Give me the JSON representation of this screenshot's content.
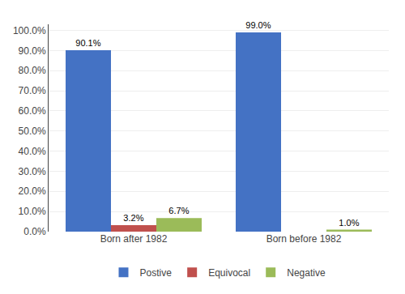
{
  "chart_data": {
    "type": "bar",
    "categories": [
      "Born after 1982",
      "Born before 1982"
    ],
    "series": [
      {
        "name": "Postive",
        "color": "#4472C4",
        "values": [
          90.1,
          99.0
        ],
        "value_labels": [
          "90.1%",
          "99.0%"
        ]
      },
      {
        "name": "Equivocal",
        "color": "#C0504D",
        "values": [
          3.2,
          0.0
        ],
        "value_labels": [
          "3.2%",
          null
        ]
      },
      {
        "name": "Negative",
        "color": "#9BBB59",
        "values": [
          6.7,
          1.0
        ],
        "value_labels": [
          "6.7%",
          "1.0%"
        ]
      }
    ],
    "ylim": [
      0,
      103
    ],
    "yticks": [
      {
        "value": 0,
        "label": "0.0%"
      },
      {
        "value": 10,
        "label": "10.0%"
      },
      {
        "value": 20,
        "label": "20.0%"
      },
      {
        "value": 30,
        "label": "30.0%"
      },
      {
        "value": 40,
        "label": "40.0%"
      },
      {
        "value": 50,
        "label": "50.0%"
      },
      {
        "value": 60,
        "label": "60.0%"
      },
      {
        "value": 70,
        "label": "70.0%"
      },
      {
        "value": 80,
        "label": "80.0%"
      },
      {
        "value": 90,
        "label": "90.0%"
      },
      {
        "value": 100,
        "label": "100.0%"
      }
    ],
    "grid": true,
    "legend": "bottom",
    "data_labels": true
  }
}
